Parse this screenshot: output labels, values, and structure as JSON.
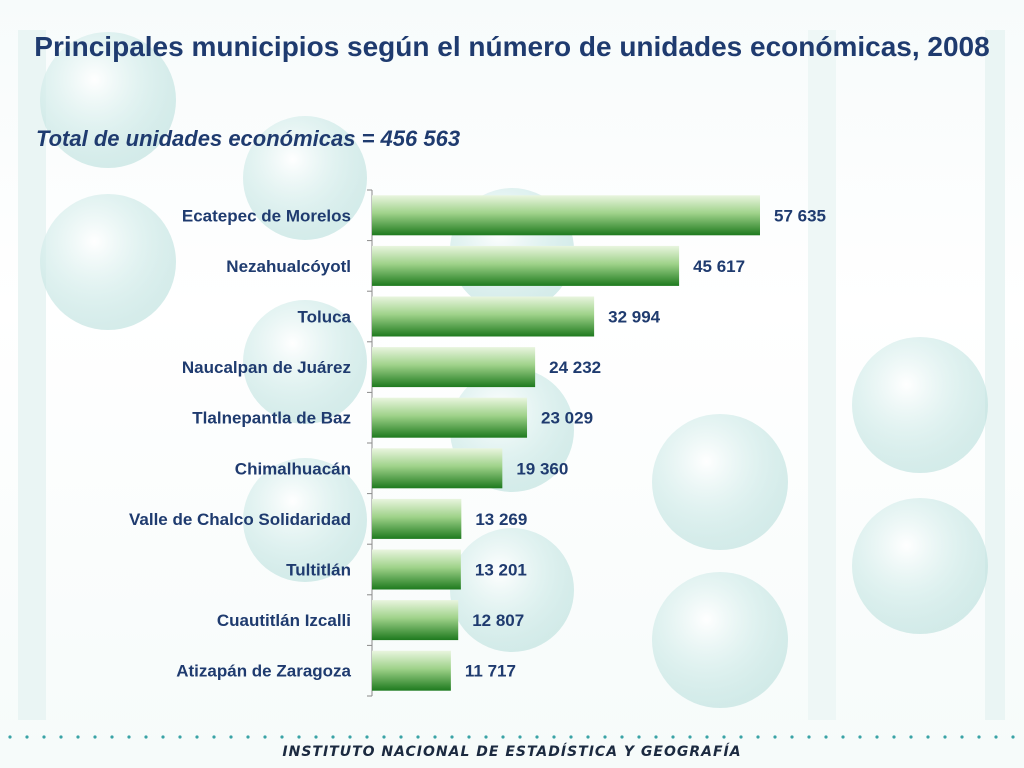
{
  "slide": {
    "title": "Principales municipios según el número de unidades económicas, 2008",
    "subtitle": "Total de unidades económicas = 456 563",
    "footer": "INSTITUTO NACIONAL DE ESTADÍSTICA Y GEOGRAFÍA"
  },
  "colors": {
    "title": "#1f3b6f",
    "bar_light": "#dff0d0",
    "bar_dark": "#1e7a1e",
    "background_bubble": "#cde8e6",
    "dots": "#3aa3a6"
  },
  "chart_data": {
    "type": "bar",
    "orientation": "horizontal",
    "categories": [
      "Ecatepec de Morelos",
      "Nezahualcóyotl",
      "Toluca",
      "Naucalpan de Juárez",
      "Tlalnepantla de Baz",
      "Chimalhuacán",
      "Valle de Chalco Solidaridad",
      "Tultitlán",
      "Cuautitlán Izcalli",
      "Atizapán de Zaragoza"
    ],
    "values": [
      57635,
      45617,
      32994,
      24232,
      23029,
      19360,
      13269,
      13201,
      12807,
      11717
    ],
    "value_labels": [
      "57 635",
      "45 617",
      "32 994",
      "24 232",
      "23 029",
      "19 360",
      "13 269",
      "13 201",
      "12 807",
      "11 717"
    ],
    "xlim": [
      0,
      70000
    ],
    "grid": false,
    "legend": "none"
  }
}
